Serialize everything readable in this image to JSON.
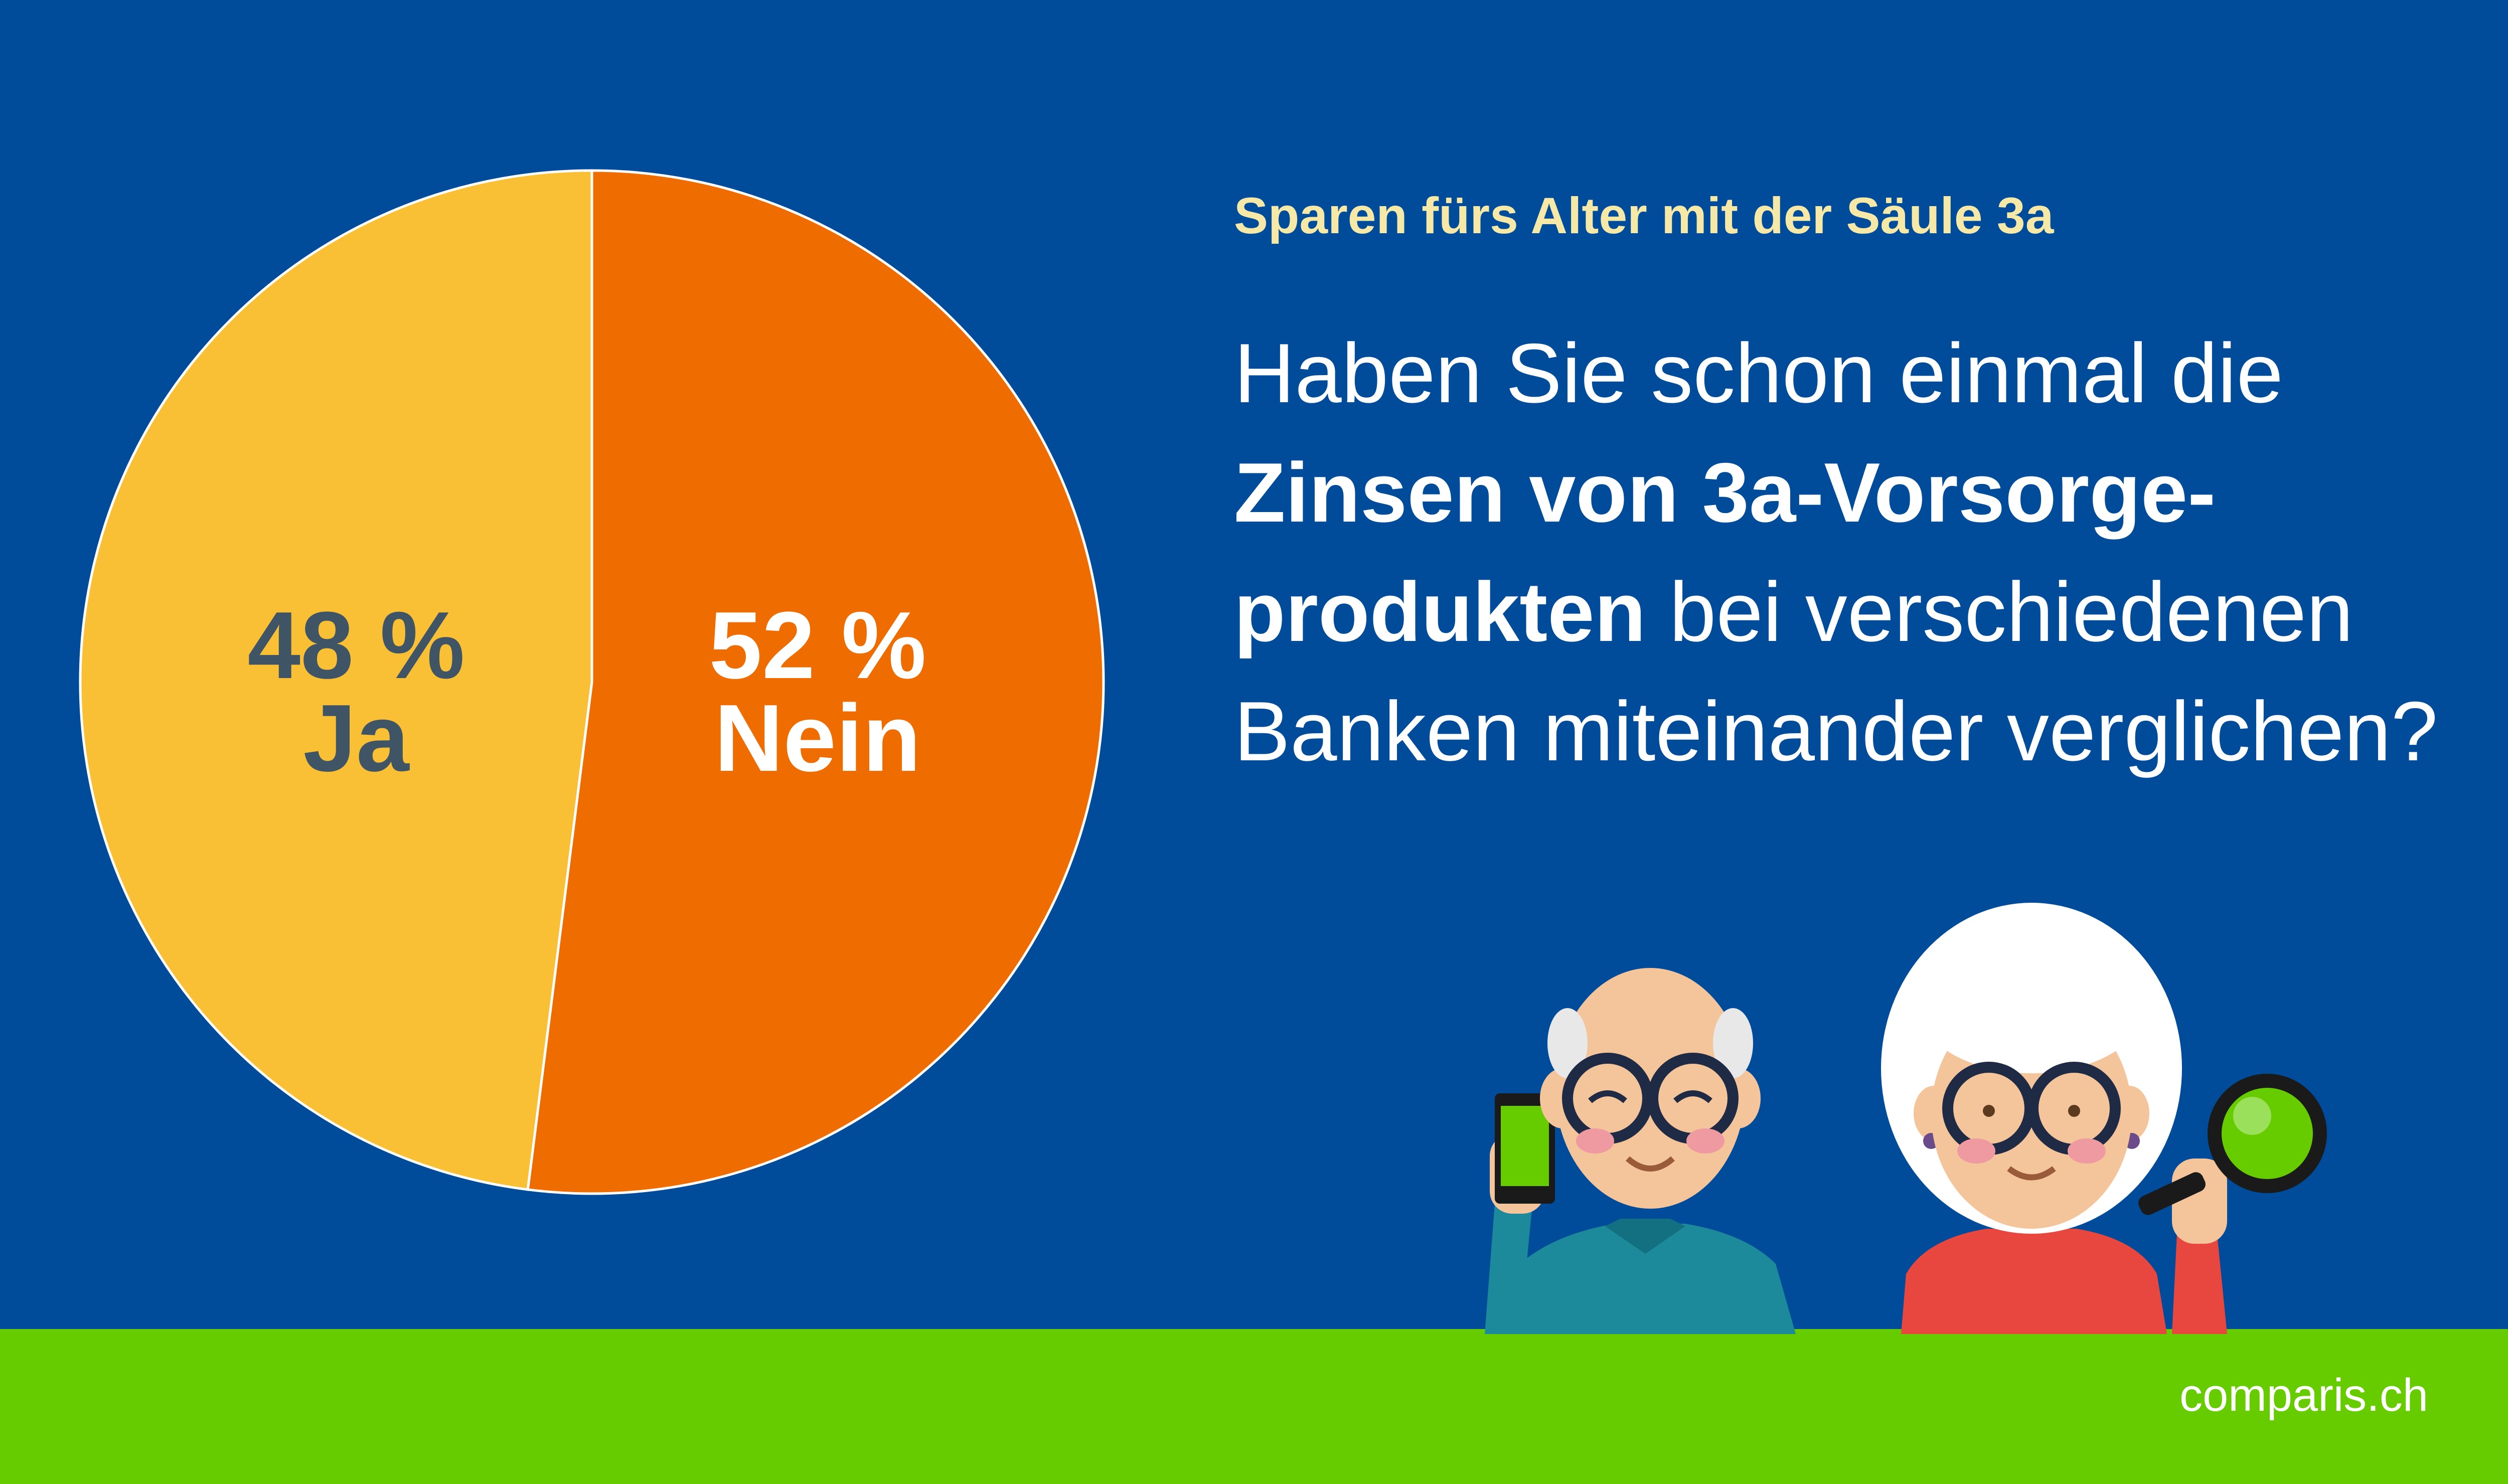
{
  "kicker": "Sparen fürs Alter mit der Säule 3a",
  "question": {
    "p1": "Haben Sie schon einmal die ",
    "b1": "Zinsen von 3a-Vorsorge-",
    "b2": "produkten",
    "p2": " bei verschiedenen Banken miteinander verglichen?"
  },
  "brand": "comparis.ch",
  "colors": {
    "background": "#004c9b",
    "footer": "#66cc00",
    "ja": "#f9c035",
    "nein": "#ef6c00",
    "ja_label": "#3f5566",
    "nein_label": "#ffffff"
  },
  "chart_data": {
    "type": "pie",
    "start": "12 o'clock",
    "direction": "clockwise",
    "slices": [
      {
        "label": "Nein",
        "value": 52,
        "value_label": "52 %",
        "color": "#ef6c00"
      },
      {
        "label": "Ja",
        "value": 48,
        "value_label": "48 %",
        "color": "#f9c035"
      }
    ]
  }
}
